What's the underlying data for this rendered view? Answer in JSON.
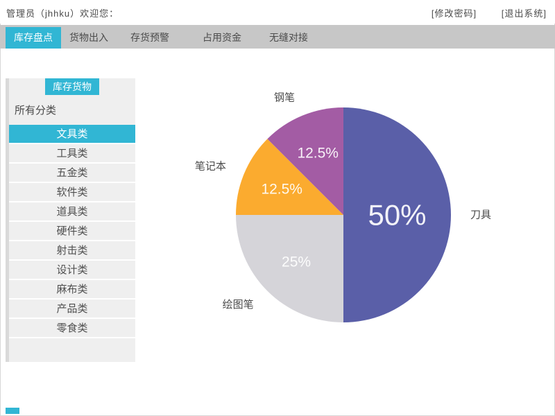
{
  "colors": {
    "accent": "#31b6d4",
    "nav_background": "#c7c7c7",
    "sidebar_background": "#efefef",
    "text": "#4a4a4a"
  },
  "header": {
    "welcome": "管理员（jhhku）欢迎您：",
    "change_password": "[修改密码]",
    "logout": "[退出系统]"
  },
  "nav": {
    "tabs": [
      {
        "label": "库存盘点",
        "active": true
      },
      {
        "label": "货物出入",
        "active": false
      },
      {
        "label": "存货预警",
        "active": false
      },
      {
        "label": "占用资金",
        "active": false
      },
      {
        "label": "无缝对接",
        "active": false
      }
    ]
  },
  "sidebar": {
    "title": "库存货物",
    "filter_label": "所有分类",
    "items": [
      {
        "label": "文具类",
        "selected": true
      },
      {
        "label": "工具类",
        "selected": false
      },
      {
        "label": "五金类",
        "selected": false
      },
      {
        "label": "软件类",
        "selected": false
      },
      {
        "label": "道具类",
        "selected": false
      },
      {
        "label": "硬件类",
        "selected": false
      },
      {
        "label": "射击类",
        "selected": false
      },
      {
        "label": "设计类",
        "selected": false
      },
      {
        "label": "麻布类",
        "selected": false
      },
      {
        "label": "产品类",
        "selected": false
      },
      {
        "label": "零食类",
        "selected": false
      }
    ]
  },
  "chart_data": {
    "type": "pie",
    "title": "",
    "labels": [
      "刀具",
      "绘图笔",
      "笔记本",
      "钢笔"
    ],
    "values": [
      50,
      25,
      12.5,
      12.5
    ],
    "value_labels": [
      "50%",
      "25%",
      "12.5%",
      "12.5%"
    ],
    "colors": [
      "#5a5fa8",
      "#d5d4d9",
      "#fbab2f",
      "#a35ca4"
    ],
    "start_angle_deg": 0,
    "direction": "clockwise",
    "labels_position": "outside",
    "legend": "none"
  }
}
